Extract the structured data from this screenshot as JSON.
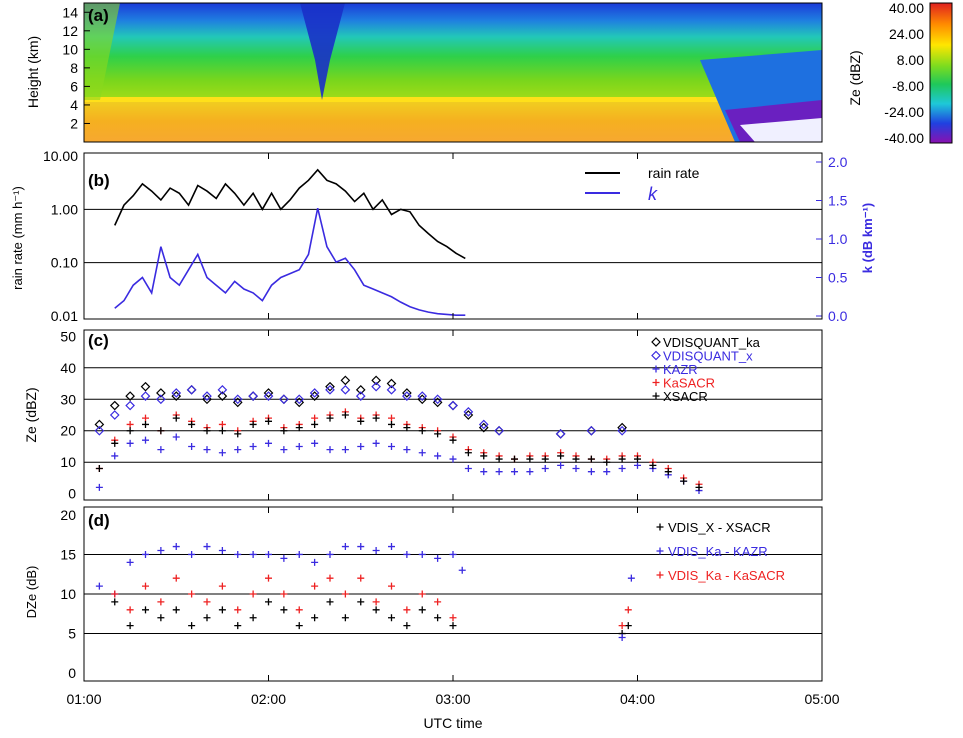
{
  "x_axis": {
    "label": "UTC time",
    "ticks": [
      "01:00",
      "02:00",
      "03:00",
      "04:00",
      "05:00"
    ]
  },
  "colors": {
    "black_series": "#000000",
    "blue_series": "#3a2be0",
    "red_series": "#ee2222",
    "grid": "#000000"
  },
  "colorbar": {
    "label": "Ze (dBZ)",
    "ticks": [
      "40.00",
      "24.00",
      "8.00",
      "-8.00",
      "-24.00",
      "-40.00"
    ]
  },
  "panels": {
    "a": {
      "tag": "(a)",
      "ylabel": "Height (km)",
      "yticks": [
        "14",
        "12",
        "10",
        "8",
        "6",
        "4",
        "2"
      ]
    },
    "b": {
      "tag": "(b)",
      "ylabel": "rain rate (mm h⁻¹)",
      "yticks": [
        "10.00",
        "1.00",
        "0.10",
        "0.01"
      ],
      "y2label": "k  (dB km⁻¹)",
      "y2ticks": [
        "2.0",
        "1.5",
        "1.0",
        "0.5",
        "0.0"
      ]
    },
    "c": {
      "tag": "(c)",
      "ylabel": "Ze (dBZ)",
      "yticks": [
        "50",
        "40",
        "30",
        "20",
        "10",
        "0"
      ]
    },
    "d": {
      "tag": "(d)",
      "ylabel": "DZe (dB)",
      "yticks": [
        "20",
        "15",
        "10",
        "5",
        "0"
      ]
    }
  },
  "chart_data": [
    {
      "type": "heatmap",
      "panel": "a",
      "xlabel": "",
      "ylabel": "Height (km)",
      "xlim": [
        "01:00",
        "05:00"
      ],
      "ylim": [
        0,
        15
      ],
      "colorbar_range": [
        -40,
        40
      ],
      "colorbar_label": "Ze (dBZ)",
      "data_end_time": "04:30",
      "melting_layer_km": 4.5,
      "description_values": {
        "below_melting_layer_dBZ": 24,
        "above_melting_layer_dBZ": 0,
        "echo_top_km": 13,
        "clear_air_dBZ": -20
      }
    },
    {
      "type": "line",
      "panel": "b",
      "xlabel": "",
      "ylabel": "rain rate (mm h⁻¹)",
      "y2label": "k (dB km⁻¹)",
      "ylim": [
        0.01,
        10
      ],
      "yscale": "log",
      "y2lim": [
        0,
        2
      ],
      "legend_position": "top-right",
      "series": [
        {
          "name": "rain rate",
          "color": "#000000",
          "axis": "left",
          "x": [
            "01:10",
            "01:13",
            "01:16",
            "01:19",
            "01:22",
            "01:25",
            "01:28",
            "01:31",
            "01:34",
            "01:37",
            "01:40",
            "01:43",
            "01:46",
            "01:49",
            "01:52",
            "01:55",
            "01:58",
            "02:01",
            "02:04",
            "02:07",
            "02:10",
            "02:13",
            "02:16",
            "02:19",
            "02:22",
            "02:25",
            "02:28",
            "02:31",
            "02:34",
            "02:37",
            "02:40",
            "02:43",
            "02:46",
            "02:49",
            "02:52",
            "02:55",
            "02:58",
            "03:01",
            "03:04"
          ],
          "values": [
            0.5,
            1.2,
            1.8,
            3.0,
            2.2,
            1.5,
            2.5,
            2.0,
            1.2,
            2.8,
            2.2,
            1.6,
            3.0,
            2.0,
            1.2,
            2.0,
            1.0,
            2.0,
            1.0,
            1.5,
            2.5,
            3.5,
            5.5,
            3.5,
            3.0,
            2.2,
            1.4,
            2.0,
            1.0,
            1.5,
            0.8,
            1.0,
            0.9,
            0.5,
            0.35,
            0.25,
            0.2,
            0.15,
            0.12
          ]
        },
        {
          "name": "k",
          "color": "#3a2be0",
          "axis": "right",
          "x": [
            "01:10",
            "01:13",
            "01:16",
            "01:19",
            "01:22",
            "01:25",
            "01:28",
            "01:31",
            "01:34",
            "01:37",
            "01:40",
            "01:43",
            "01:46",
            "01:49",
            "01:52",
            "01:55",
            "01:58",
            "02:01",
            "02:04",
            "02:07",
            "02:10",
            "02:13",
            "02:16",
            "02:19",
            "02:22",
            "02:25",
            "02:28",
            "02:31",
            "02:34",
            "02:37",
            "02:40",
            "02:43",
            "02:46",
            "02:49",
            "02:52",
            "02:55",
            "02:58",
            "03:01",
            "03:04"
          ],
          "values": [
            0.1,
            0.2,
            0.4,
            0.5,
            0.3,
            0.9,
            0.5,
            0.4,
            0.6,
            0.8,
            0.5,
            0.4,
            0.3,
            0.45,
            0.35,
            0.3,
            0.2,
            0.4,
            0.5,
            0.55,
            0.6,
            0.8,
            1.4,
            0.9,
            0.7,
            0.75,
            0.6,
            0.4,
            0.35,
            0.3,
            0.25,
            0.18,
            0.12,
            0.08,
            0.05,
            0.03,
            0.02,
            0.01,
            0.01
          ]
        }
      ]
    },
    {
      "type": "scatter",
      "panel": "c",
      "xlabel": "",
      "ylabel": "Ze (dBZ)",
      "ylim": [
        -2,
        52
      ],
      "legend_position": "top-right",
      "x": [
        "01:05",
        "01:10",
        "01:15",
        "01:20",
        "01:25",
        "01:30",
        "01:35",
        "01:40",
        "01:45",
        "01:50",
        "01:55",
        "02:00",
        "02:05",
        "02:10",
        "02:15",
        "02:20",
        "02:25",
        "02:30",
        "02:35",
        "02:40",
        "02:45",
        "02:50",
        "02:55",
        "03:00",
        "03:05",
        "03:10",
        "03:15",
        "03:20",
        "03:25",
        "03:30",
        "03:35",
        "03:40",
        "03:45",
        "03:50",
        "03:55",
        "04:00",
        "04:05",
        "04:10",
        "04:15",
        "04:20"
      ],
      "series": [
        {
          "name": "VDISQUANT_ka",
          "marker": "diamond",
          "color": "#000000",
          "values": [
            22,
            28,
            31,
            34,
            32,
            31,
            33,
            30,
            31,
            29,
            31,
            32,
            30,
            29,
            31,
            34,
            36,
            33,
            36,
            35,
            32,
            30,
            29,
            28,
            25,
            21,
            20,
            null,
            null,
            null,
            19,
            null,
            20,
            null,
            21,
            null,
            null,
            null,
            null,
            null
          ]
        },
        {
          "name": "VDISQUANT_x",
          "marker": "diamond",
          "color": "#3a2be0",
          "values": [
            20,
            25,
            28,
            31,
            30,
            32,
            33,
            31,
            33,
            30,
            31,
            31,
            30,
            30,
            32,
            33,
            33,
            31,
            34,
            33,
            31,
            31,
            30,
            28,
            26,
            22,
            20,
            null,
            null,
            null,
            19,
            null,
            20,
            null,
            20,
            null,
            null,
            null,
            null,
            null
          ]
        },
        {
          "name": "KAZR",
          "marker": "plus",
          "color": "#3a2be0",
          "values": [
            2,
            12,
            16,
            17,
            14,
            18,
            15,
            14,
            13,
            14,
            15,
            16,
            14,
            15,
            16,
            14,
            14,
            15,
            16,
            15,
            14,
            13,
            12,
            11,
            8,
            7,
            7,
            7,
            7,
            8,
            9,
            8,
            7,
            7,
            8,
            9,
            8,
            6,
            4,
            1
          ]
        },
        {
          "name": "KaSACR",
          "marker": "plus",
          "color": "#ee2222",
          "values": [
            8,
            17,
            22,
            24,
            20,
            25,
            23,
            21,
            22,
            20,
            23,
            24,
            21,
            22,
            24,
            25,
            26,
            24,
            25,
            24,
            22,
            21,
            20,
            18,
            14,
            13,
            12,
            11,
            12,
            12,
            13,
            12,
            11,
            11,
            12,
            12,
            10,
            8,
            5,
            3
          ]
        },
        {
          "name": "XSACR",
          "marker": "plus",
          "color": "#000000",
          "values": [
            8,
            16,
            20,
            22,
            20,
            24,
            22,
            20,
            20,
            19,
            22,
            23,
            20,
            21,
            22,
            24,
            25,
            23,
            24,
            22,
            21,
            20,
            19,
            17,
            13,
            12,
            11,
            11,
            11,
            11,
            12,
            11,
            11,
            10,
            11,
            11,
            9,
            7,
            4,
            2
          ]
        }
      ]
    },
    {
      "type": "scatter",
      "panel": "d",
      "xlabel": "UTC time",
      "ylabel": "DZe (dB)",
      "ylim": [
        -1,
        21
      ],
      "legend_position": "top-right",
      "series": [
        {
          "name": "VDIS_X - XSACR",
          "marker": "plus",
          "color": "#000000",
          "x": [
            "01:10",
            "01:15",
            "01:20",
            "01:25",
            "01:30",
            "01:35",
            "01:40",
            "01:45",
            "01:50",
            "01:55",
            "02:00",
            "02:05",
            "02:10",
            "02:15",
            "02:20",
            "02:25",
            "02:30",
            "02:35",
            "02:40",
            "02:45",
            "02:50",
            "02:55",
            "03:00",
            "03:55",
            "03:57"
          ],
          "values": [
            9,
            6,
            8,
            7,
            8,
            6,
            7,
            8,
            6,
            7,
            9,
            8,
            6,
            7,
            9,
            7,
            9,
            8,
            7,
            6,
            8,
            7,
            6,
            5,
            6
          ]
        },
        {
          "name": "VDIS_Ka - KAZR",
          "marker": "plus",
          "color": "#3a2be0",
          "x": [
            "01:05",
            "01:10",
            "01:15",
            "01:20",
            "01:25",
            "01:30",
            "01:35",
            "01:40",
            "01:45",
            "01:50",
            "01:55",
            "02:00",
            "02:05",
            "02:10",
            "02:15",
            "02:20",
            "02:25",
            "02:30",
            "02:35",
            "02:40",
            "02:45",
            "02:50",
            "02:55",
            "03:00",
            "03:03",
            "03:55",
            "03:58"
          ],
          "values": [
            11,
            10,
            14,
            15,
            15.5,
            16,
            15,
            16,
            15.5,
            15,
            15,
            15,
            14.5,
            15,
            14,
            15,
            16,
            16,
            15.5,
            16,
            15,
            15,
            14.5,
            15,
            13,
            4.5,
            12
          ]
        },
        {
          "name": "VDIS_Ka - KaSACR",
          "marker": "plus",
          "color": "#ee2222",
          "x": [
            "01:10",
            "01:15",
            "01:20",
            "01:25",
            "01:30",
            "01:35",
            "01:40",
            "01:45",
            "01:50",
            "01:55",
            "02:00",
            "02:05",
            "02:10",
            "02:15",
            "02:20",
            "02:25",
            "02:30",
            "02:35",
            "02:40",
            "02:45",
            "02:50",
            "02:55",
            "03:00",
            "03:55",
            "03:57"
          ],
          "values": [
            10,
            8,
            11,
            9,
            12,
            10,
            9,
            11,
            8,
            10,
            12,
            10,
            8,
            11,
            12,
            10,
            12,
            9,
            11,
            8,
            10,
            9,
            7,
            6,
            8
          ]
        }
      ]
    }
  ]
}
